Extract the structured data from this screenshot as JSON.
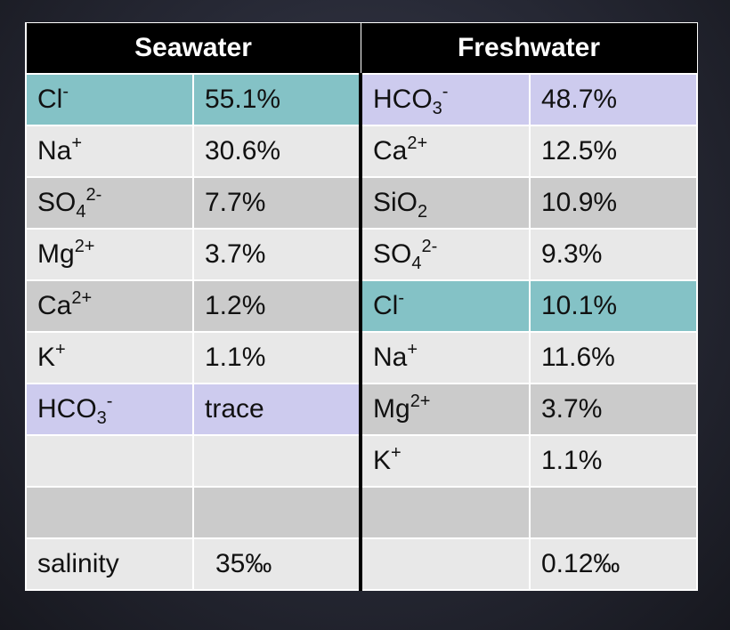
{
  "headers": {
    "seawater": "Seawater",
    "freshwater": "Freshwater"
  },
  "rows": [
    {
      "sw": {
        "base": "Cl",
        "sub": "",
        "sup": "-"
      },
      "sw_val": "55.1%",
      "fw": {
        "base": "HCO",
        "sub": "3",
        "sup": "-"
      },
      "fw_val": "48.7%"
    },
    {
      "sw": {
        "base": "Na",
        "sub": "",
        "sup": "+"
      },
      "sw_val": "30.6%",
      "fw": {
        "base": "Ca",
        "sub": "",
        "sup": "2+"
      },
      "fw_val": "12.5%"
    },
    {
      "sw": {
        "base": "SO",
        "sub": "4",
        "sup": "2-"
      },
      "sw_val": "7.7%",
      "fw": {
        "base": "SiO",
        "sub": "2",
        "sup": ""
      },
      "fw_val": "10.9%"
    },
    {
      "sw": {
        "base": "Mg",
        "sub": "",
        "sup": "2+"
      },
      "sw_val": "3.7%",
      "fw": {
        "base": "SO",
        "sub": "4",
        "sup": "2-"
      },
      "fw_val": "9.3%"
    },
    {
      "sw": {
        "base": "Ca",
        "sub": "",
        "sup": "2+"
      },
      "sw_val": "1.2%",
      "fw": {
        "base": "Cl",
        "sub": "",
        "sup": "-"
      },
      "fw_val": "10.1%"
    },
    {
      "sw": {
        "base": "K",
        "sub": "",
        "sup": "+"
      },
      "sw_val": "1.1%",
      "fw": {
        "base": "Na",
        "sub": "",
        "sup": "+"
      },
      "fw_val": "11.6%"
    },
    {
      "sw": {
        "base": "HCO",
        "sub": "3",
        "sup": "-"
      },
      "sw_val": "trace",
      "fw": {
        "base": "Mg",
        "sub": "",
        "sup": "2+"
      },
      "fw_val": "3.7%"
    },
    {
      "sw": {
        "base": "",
        "sub": "",
        "sup": ""
      },
      "sw_val": "",
      "fw": {
        "base": "K",
        "sub": "",
        "sup": "+"
      },
      "fw_val": "1.1%"
    },
    {
      "sw": {
        "base": "",
        "sub": "",
        "sup": ""
      },
      "sw_val": "",
      "fw": {
        "base": "",
        "sub": "",
        "sup": ""
      },
      "fw_val": ""
    },
    {
      "sw": {
        "base": "salinity",
        "sub": "",
        "sup": ""
      },
      "sw_val": "35‰",
      "fw": {
        "base": "",
        "sub": "",
        "sup": ""
      },
      "fw_val": "0.12‰"
    }
  ],
  "colors": {
    "teal_highlight": "#84c2c6",
    "lavender_highlight": "#cdcbee",
    "row_light": "#e8e8e8",
    "row_dark": "#cbcbcb",
    "header_bg": "#000000"
  }
}
